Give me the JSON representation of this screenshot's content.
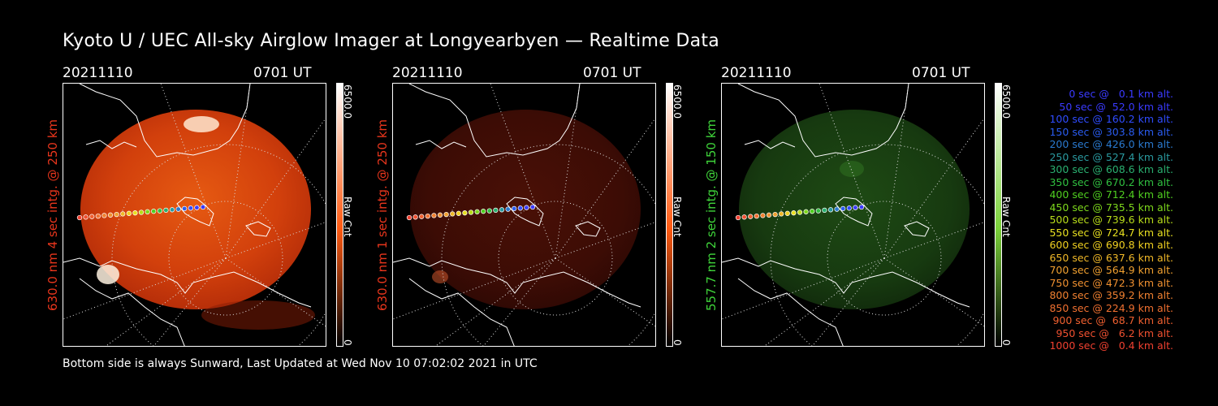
{
  "title": "Kyoto U / UEC All-sky Airglow Imager at Longyearbyen — Realtime Data",
  "footer": "Bottom side is always Sunward, Last Updated at Wed Nov 10 07:02:02 2021 in UTC",
  "panels": [
    {
      "date": "20211110",
      "time": "0701 UT",
      "side_label": "630.0 nm 4 sec intg. @ 250 km",
      "label_color": "#e8351c",
      "cbar_max": "6500.0",
      "cbar_unit": "Raw Cnt",
      "cbar_min": "0",
      "cbar_color": "#ff5a12",
      "glow": "red-strong"
    },
    {
      "date": "20211110",
      "time": "0701 UT",
      "side_label": "630.0 nm 1 sec intg. @ 250 km",
      "label_color": "#e8351c",
      "cbar_max": "6500.0",
      "cbar_unit": "Raw Cnt",
      "cbar_min": "0",
      "cbar_color": "#ff5a12",
      "glow": "red-dim"
    },
    {
      "date": "20211110",
      "time": "0701 UT",
      "side_label": "557.7 nm 2 sec intg. @ 150 km",
      "label_color": "#3fd43a",
      "cbar_max": "6500.0",
      "cbar_unit": "Raw Cnt",
      "cbar_min": "0",
      "cbar_color": "#7bd23a",
      "glow": "green"
    }
  ],
  "legend": [
    {
      "text": "0 sec @   0.1 km alt.",
      "color": "#3a3aff"
    },
    {
      "text": "50 sec @  52.0 km alt.",
      "color": "#3a3aff"
    },
    {
      "text": "100 sec @ 160.2 km alt.",
      "color": "#2f4cff"
    },
    {
      "text": "150 sec @ 303.8 km alt.",
      "color": "#2a5cf0"
    },
    {
      "text": "200 sec @ 426.0 km alt.",
      "color": "#2a7ad0"
    },
    {
      "text": "250 sec @ 527.4 km alt.",
      "color": "#2a9aa0"
    },
    {
      "text": "300 sec @ 608.6 km alt.",
      "color": "#2ab070"
    },
    {
      "text": "350 sec @ 670.2 km alt.",
      "color": "#30c040"
    },
    {
      "text": "400 sec @ 712.4 km alt.",
      "color": "#50d020"
    },
    {
      "text": "450 sec @ 735.5 km alt.",
      "color": "#7ed81c"
    },
    {
      "text": "500 sec @ 739.6 km alt.",
      "color": "#b8dc1a"
    },
    {
      "text": "550 sec @ 724.7 km alt.",
      "color": "#e8e020"
    },
    {
      "text": "600 sec @ 690.8 km alt.",
      "color": "#f0d020"
    },
    {
      "text": "650 sec @ 637.6 km alt.",
      "color": "#f0b828"
    },
    {
      "text": "700 sec @ 564.9 km alt.",
      "color": "#f0a030"
    },
    {
      "text": "750 sec @ 472.3 km alt.",
      "color": "#f09030"
    },
    {
      "text": "800 sec @ 359.2 km alt.",
      "color": "#f08030"
    },
    {
      "text": "850 sec @ 224.9 km alt.",
      "color": "#f07030"
    },
    {
      "text": "900 sec @  68.7 km alt.",
      "color": "#f06030"
    },
    {
      "text": "950 sec @   6.2 km alt.",
      "color": "#f05030"
    },
    {
      "text": "1000 sec @   0.4 km alt.",
      "color": "#f04030"
    }
  ]
}
